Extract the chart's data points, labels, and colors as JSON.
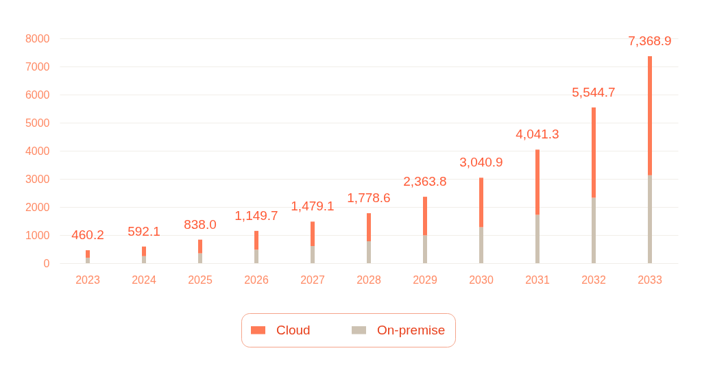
{
  "chart_data": {
    "type": "bar",
    "stacked": true,
    "categories": [
      "2023",
      "2024",
      "2025",
      "2026",
      "2027",
      "2028",
      "2029",
      "2030",
      "2031",
      "2032",
      "2033"
    ],
    "series": [
      {
        "name": "On-premise",
        "color": "#cdc2b2",
        "values": [
          190,
          250,
          350,
          480,
          610,
          780,
          990,
          1280,
          1720,
          2330,
          3130
        ]
      },
      {
        "name": "Cloud",
        "color": "#ff7b57",
        "values": [
          270.2,
          342.1,
          488.0,
          669.7,
          869.1,
          998.6,
          1373.8,
          1760.9,
          2321.3,
          3214.7,
          4238.9
        ]
      }
    ],
    "totals": [
      "460.2",
      "592.1",
      "838.0",
      "1,149.7",
      "1,479.1",
      "1,778.6",
      "2,363.8",
      "3,040.9",
      "4,041.3",
      "5,544.7",
      "7,368.9"
    ],
    "ylim": [
      0,
      8000
    ],
    "yticks": [
      0,
      1000,
      2000,
      3000,
      4000,
      5000,
      6000,
      7000,
      8000
    ],
    "grid": "y",
    "legend": "bottom"
  }
}
